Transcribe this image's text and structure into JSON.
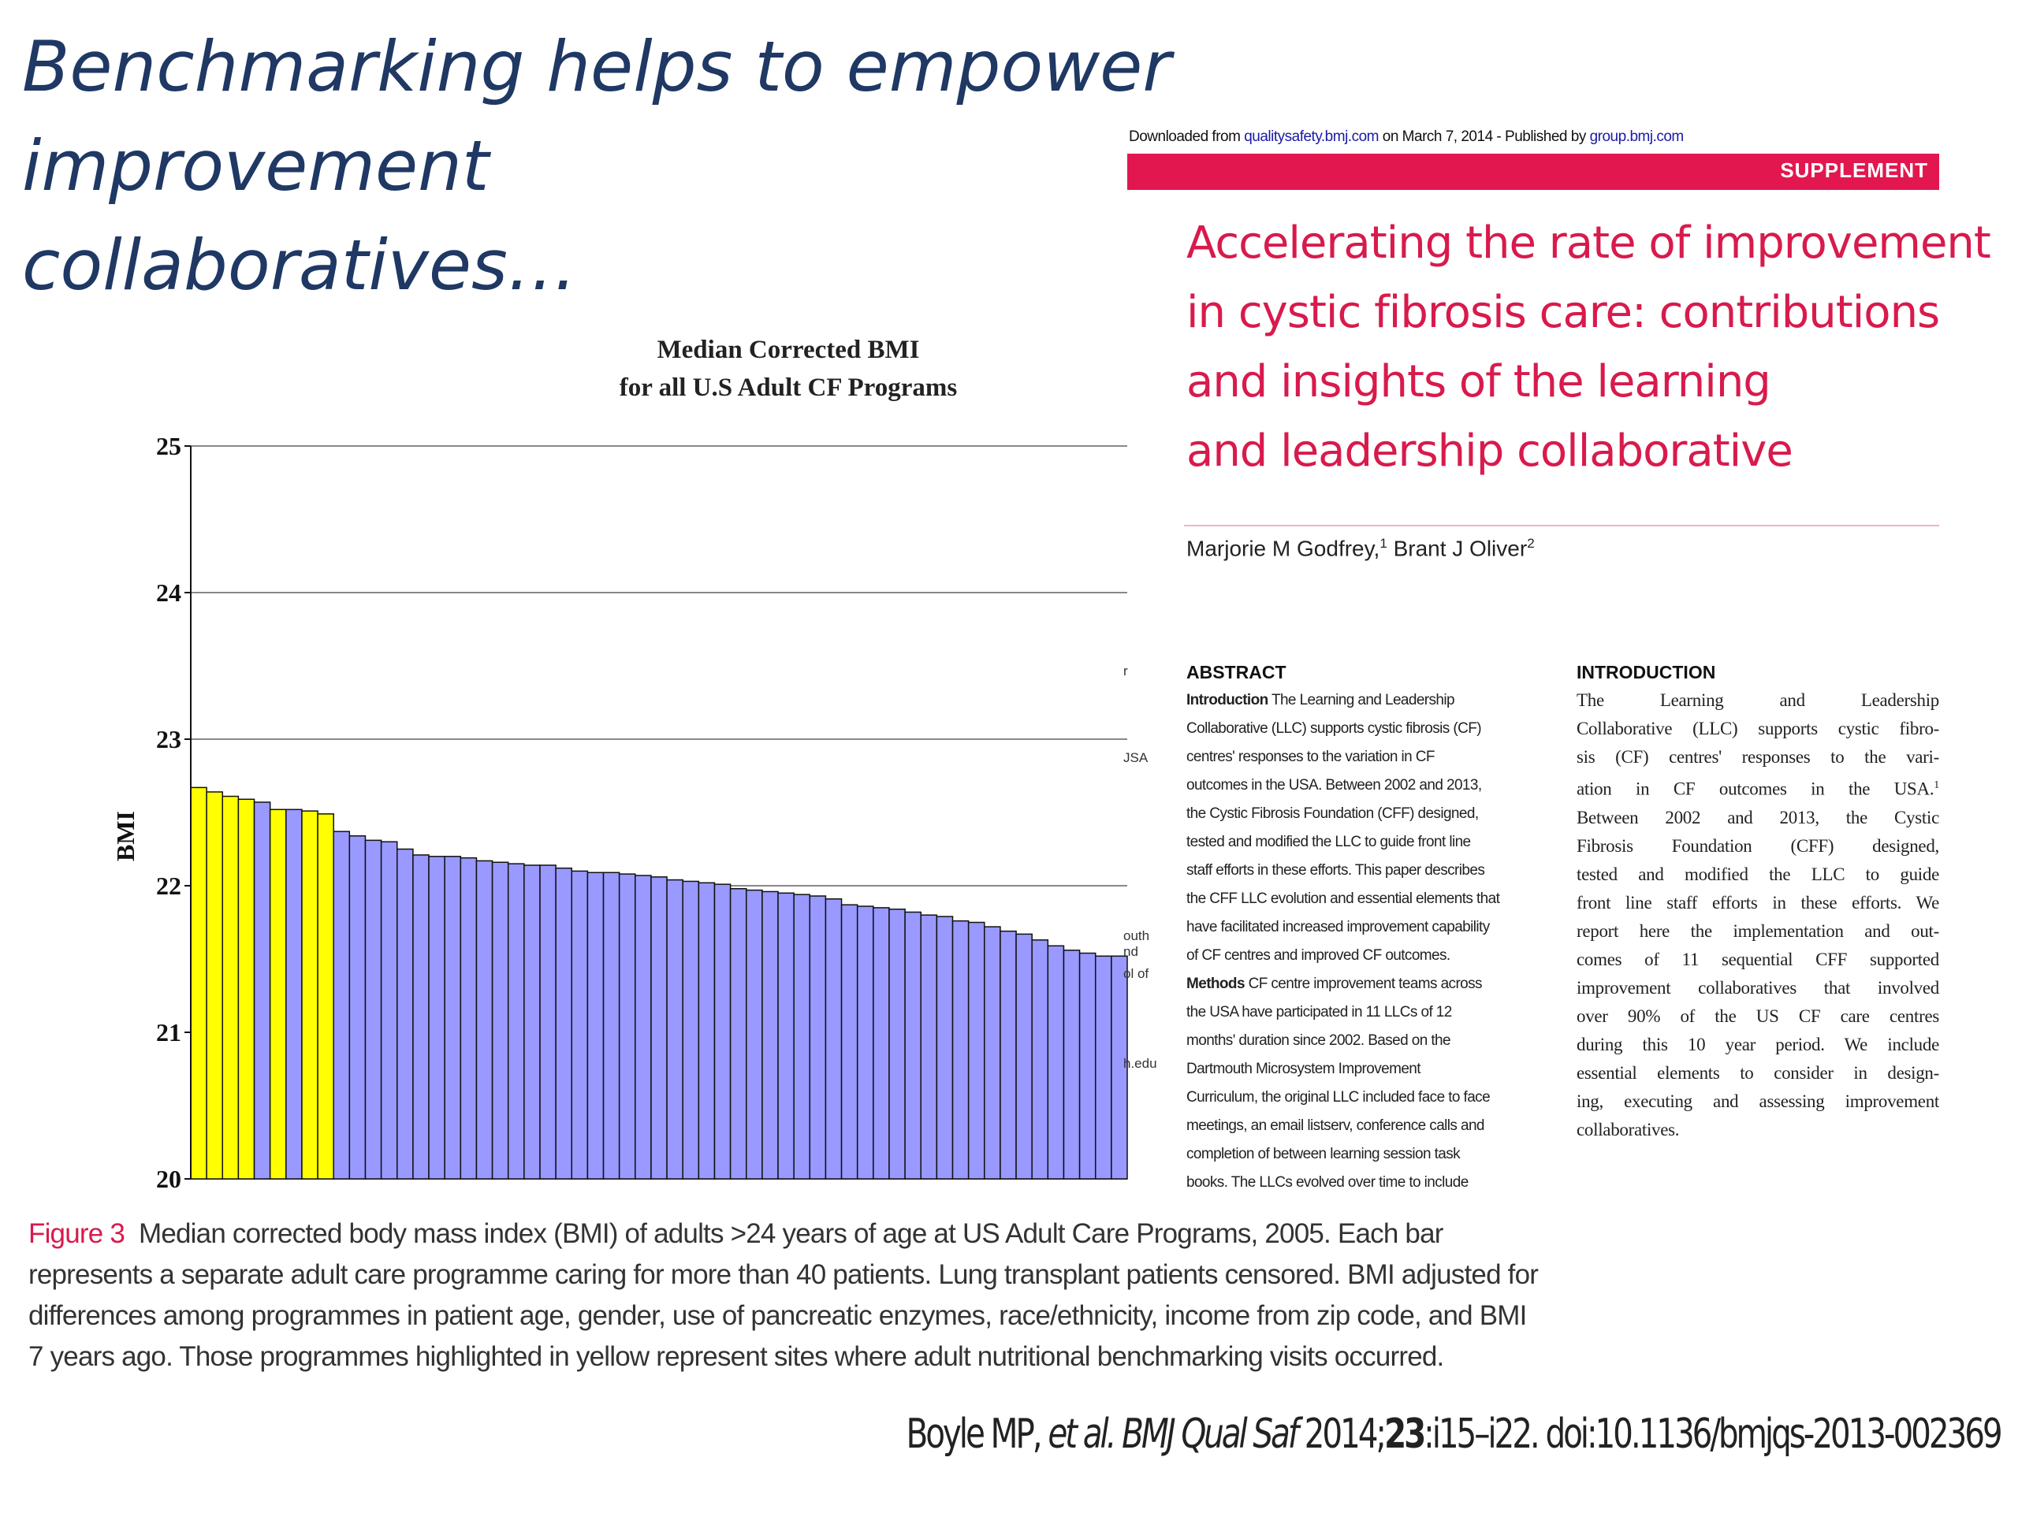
{
  "slide": {
    "title_line1": "Benchmarking helps to empower improvement",
    "title_line2": "collaboratives…"
  },
  "paper": {
    "download_prefix": "Downloaded from ",
    "download_link1": "qualitysafety.bmj.com",
    "download_mid": " on March 7, 2014 - Published by ",
    "download_link2": "group.bmj.com",
    "supplement_label": "SUPPLEMENT",
    "title_lines": [
      "Accelerating the rate of improvement",
      "in cystic fibrosis care: contributions",
      "and insights of the learning",
      "and leadership collaborative"
    ],
    "author1": "Marjorie M Godfrey,",
    "author1_sup": "1",
    "author2": " Brant J Oliver",
    "author2_sup": "2",
    "abstract_heading": "ABSTRACT",
    "abstract_intro_label": "Introduction",
    "abstract_methods_label": "Methods",
    "abstract_lines": [
      " The Learning and Leadership",
      "Collaborative (LLC) supports cystic fibrosis (CF)",
      "centres' responses to the variation in CF",
      "outcomes in the USA. Between 2002 and 2013,",
      "the Cystic Fibrosis Foundation (CFF) designed,",
      "tested and modified the LLC to guide front line",
      "staff efforts in these efforts. This paper describes",
      "the CFF LLC evolution and essential elements that",
      "have facilitated increased improvement capability",
      "of CF centres and improved CF outcomes.",
      " CF centre improvement teams across",
      "the USA have participated in 11 LLCs of 12",
      "months' duration since 2002. Based on the",
      "Dartmouth Microsystem Improvement",
      "Curriculum, the original LLC included face to face",
      "meetings, an email listserv, conference calls and",
      "completion of between learning session task",
      "books. The LLCs evolved over time to include"
    ],
    "intro_heading": "INTRODUCTION",
    "intro_lines": [
      "The Learning and Leadership",
      "Collaborative (LLC) supports cystic fibro-",
      "sis (CF) centres' responses to the vari-",
      "ation in CF outcomes in the USA.",
      "Between 2002 and 2013, the Cystic",
      "Fibrosis Foundation (CFF) designed,",
      "tested and modified the LLC to guide",
      "front line staff efforts in these efforts. We",
      "report here the implementation and out-",
      "comes of 11 sequential CFF supported",
      "improvement collaboratives that involved",
      "over 90% of the US CF care centres",
      "during this 10 year period. We include",
      "essential elements to consider in design-",
      "ing, executing and assessing improvement",
      "collaboratives."
    ],
    "intro_sup": "1",
    "cut_fragments": [
      "r",
      "JSA",
      "outh",
      "nd",
      "ol of",
      "h.edu"
    ]
  },
  "caption": {
    "label": "Figure 3",
    "lines": [
      "Median corrected body mass index (BMI) of adults >24 years of age at US Adult Care Programs, 2005. Each bar",
      "represents a separate adult care programme caring for more than 40 patients. Lung transplant patients censored. BMI adjusted for",
      "differences among programmes in patient age, gender, use of pancreatic enzymes, race/ethnicity, income from zip code, and BMI",
      "7 years ago. Those programmes highlighted in yellow represent sites where adult nutritional benchmarking visits occurred."
    ]
  },
  "citation": {
    "authors": "Boyle MP, ",
    "etal": "et al. ",
    "journal": "BMJ Qual Saf",
    "year": " 2014;",
    "volume": "23",
    "pages": ":i15–i22. doi:10.1136/bmjqs-2013-002369"
  },
  "chart_data": {
    "type": "bar",
    "title_line1": "Median Corrected BMI",
    "title_line2": "for all U.S Adult CF Programs",
    "ylabel": "BMI",
    "xlabel": "",
    "ylim": [
      20,
      25
    ],
    "yticks": [
      "20",
      "21",
      "22",
      "23",
      "24",
      "25"
    ],
    "grid": true,
    "colors": {
      "benchmark": "#ffff00",
      "other": "#9999ff",
      "edge": "#111111"
    },
    "values": [
      22.67,
      22.64,
      22.61,
      22.59,
      22.57,
      22.52,
      22.52,
      22.51,
      22.49,
      22.37,
      22.34,
      22.31,
      22.3,
      22.25,
      22.21,
      22.2,
      22.2,
      22.19,
      22.17,
      22.16,
      22.15,
      22.14,
      22.14,
      22.12,
      22.1,
      22.09,
      22.09,
      22.08,
      22.07,
      22.06,
      22.04,
      22.03,
      22.02,
      22.01,
      21.98,
      21.97,
      21.96,
      21.95,
      21.94,
      21.93,
      21.91,
      21.87,
      21.86,
      21.85,
      21.84,
      21.82,
      21.8,
      21.79,
      21.76,
      21.75,
      21.72,
      21.69,
      21.67,
      21.63,
      21.59,
      21.56,
      21.54,
      21.52,
      21.52
    ],
    "highlighted": [
      true,
      true,
      true,
      true,
      false,
      true,
      false,
      true,
      true,
      false,
      false,
      false,
      false,
      false,
      false,
      false,
      false,
      false,
      false,
      false,
      false,
      false,
      false,
      false,
      false,
      false,
      false,
      false,
      false,
      false,
      false,
      false,
      false,
      false,
      false,
      false,
      false,
      false,
      false,
      false,
      false,
      false,
      false,
      false,
      false,
      false,
      false,
      false,
      false,
      false,
      false,
      false,
      false,
      false,
      false,
      false,
      false,
      false,
      false
    ]
  }
}
